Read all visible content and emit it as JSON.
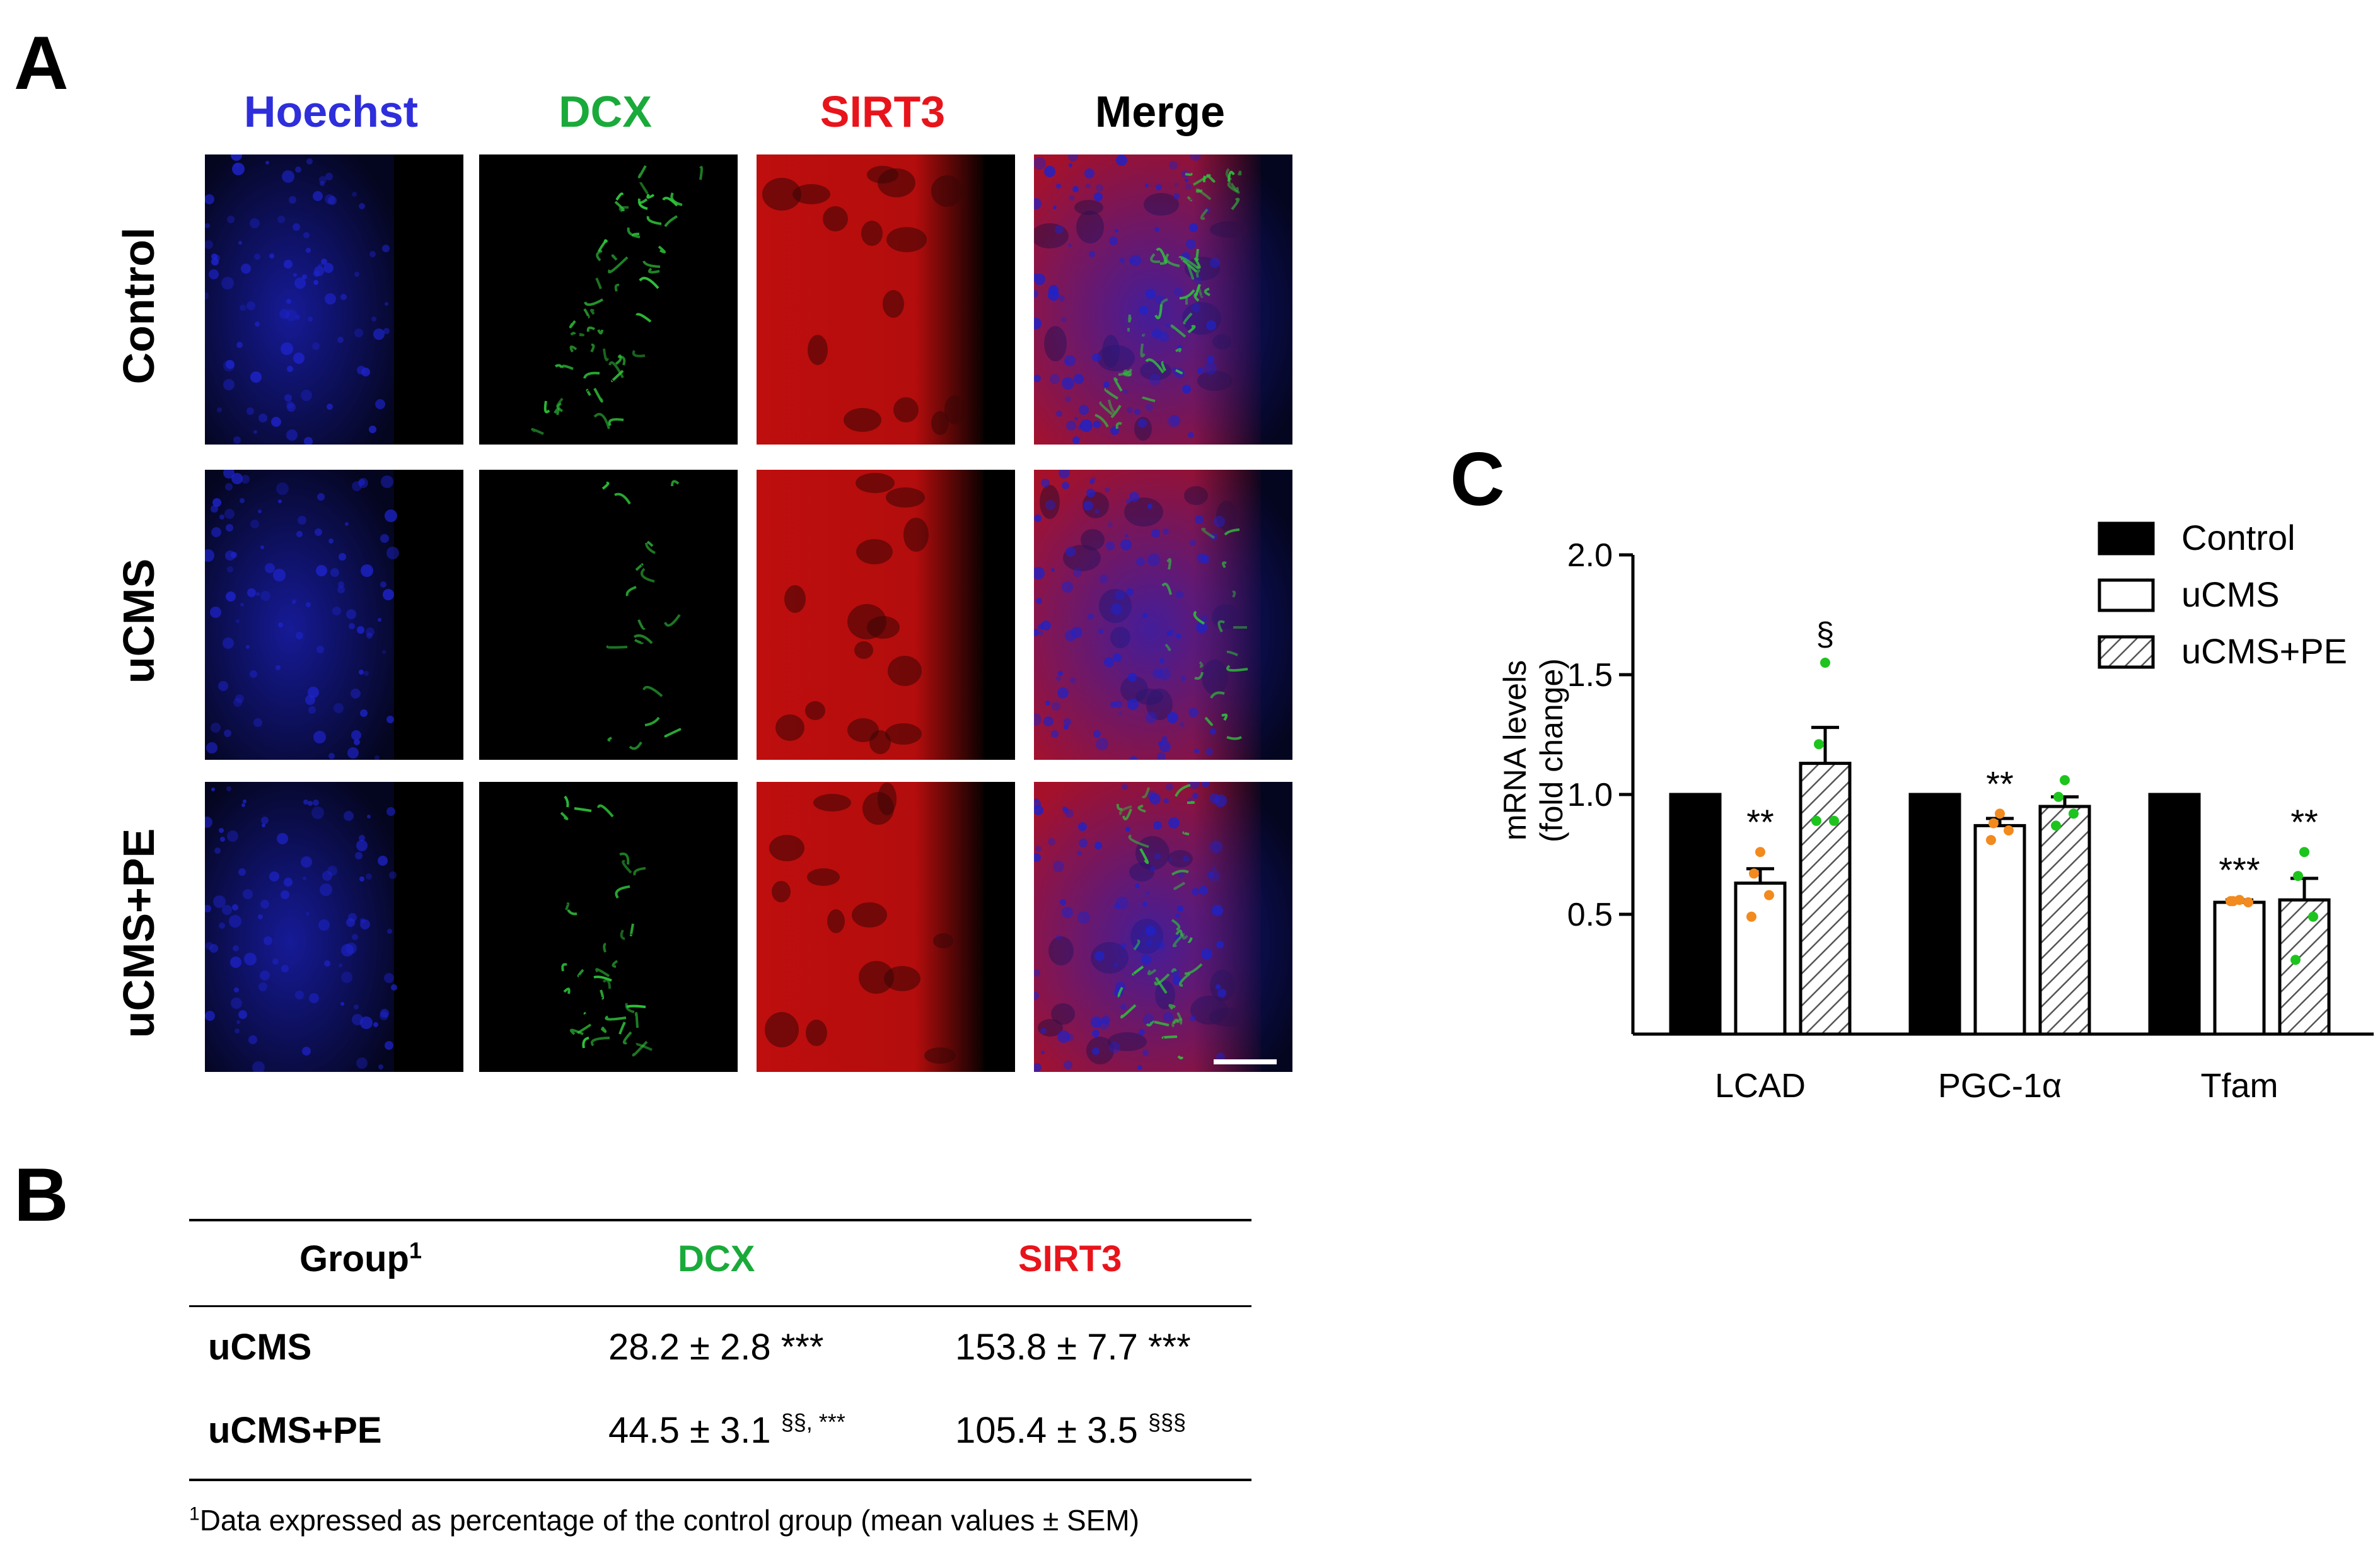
{
  "panels": {
    "a_label": "A",
    "b_label": "B",
    "c_label": "C"
  },
  "panel_a": {
    "column_headers": [
      {
        "label": "Hoechst",
        "color": "#2e2edc"
      },
      {
        "label": "DCX",
        "color": "#1aaa3a"
      },
      {
        "label": "SIRT3",
        "color": "#e8141c"
      },
      {
        "label": "Merge",
        "color": "#000000"
      }
    ],
    "row_labels": [
      "Control",
      "uCMS",
      "uCMS+PE"
    ],
    "channel_colors": {
      "hoechst": "#1d23c9",
      "dcx": "#2fc43a",
      "sirt3": "#e01010"
    }
  },
  "panel_b": {
    "headers": {
      "group": "Group",
      "group_sup": "1",
      "dcx": "DCX",
      "dcx_color": "#1aaa3a",
      "sirt3": "SIRT3",
      "sirt3_color": "#e8141c"
    },
    "rows": [
      {
        "group": "uCMS",
        "dcx_value": "28.2 ± 2.8 ***",
        "dcx_sup": "",
        "sirt3_value": "153.8 ± 7.7 ***",
        "sirt3_sup": ""
      },
      {
        "group": "uCMS+PE",
        "dcx_value": "44.5 ± 3.1 ",
        "dcx_sup": "§§, ***",
        "sirt3_value": "105.4 ± 3.5 ",
        "sirt3_sup": "§§§"
      }
    ],
    "footnote_sup": "1",
    "footnote": "Data expressed as percentage of the control group (mean values ± SEM)"
  },
  "chart_data": {
    "type": "bar",
    "title": "",
    "categories": [
      "LCAD",
      "PGC-1α",
      "Tfam"
    ],
    "ylabel_line1": "mRNA levels",
    "ylabel_line2": "(fold change)",
    "xlabel": "",
    "ylim": [
      0.0,
      2.0
    ],
    "yticks": [
      0.5,
      1.0,
      1.5,
      2.0
    ],
    "ytick_labels": [
      "0.5",
      "1.0",
      "1.5",
      "2.0"
    ],
    "legend_position": "top-right",
    "series": [
      {
        "name": "Control",
        "style": "solid",
        "fill": "#000000",
        "values": [
          1.0,
          1.0,
          1.0
        ],
        "sem": [
          0,
          0,
          0
        ],
        "points": [
          [],
          [],
          []
        ],
        "point_color": "",
        "annotations": [
          "",
          "",
          ""
        ]
      },
      {
        "name": "uCMS",
        "style": "open",
        "fill": "#ffffff",
        "values": [
          0.63,
          0.87,
          0.55
        ],
        "sem": [
          0.06,
          0.03,
          0.01
        ],
        "points": [
          [
            0.76,
            0.67,
            0.58,
            0.49
          ],
          [
            0.92,
            0.88,
            0.85,
            0.81
          ],
          [
            0.56,
            0.555,
            0.55,
            0.555
          ]
        ],
        "point_color": "#f28a1e",
        "annotations": [
          "**",
          "**",
          "***"
        ]
      },
      {
        "name": "uCMS+PE",
        "style": "hatched",
        "fill": "#ffffff",
        "values": [
          1.13,
          0.95,
          0.56
        ],
        "sem": [
          0.15,
          0.04,
          0.09
        ],
        "points": [
          [
            1.55,
            1.21,
            0.89,
            0.89
          ],
          [
            1.06,
            0.99,
            0.92,
            0.87
          ],
          [
            0.76,
            0.66,
            0.49,
            0.31
          ]
        ],
        "point_color": "#1ec41e",
        "annotations": [
          "§",
          "",
          "**"
        ]
      }
    ]
  }
}
